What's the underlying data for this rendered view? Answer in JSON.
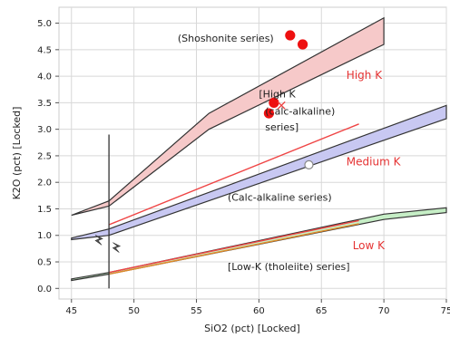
{
  "chart_data": {
    "type": "scatter",
    "xlabel": "SiO2 (pct) [Locked]",
    "ylabel": "K2O (pct) [Locked]",
    "xlim": [
      44,
      75
    ],
    "ylim": [
      -0.2,
      5.3
    ],
    "x_ticks": [
      "45",
      "50",
      "55",
      "60",
      "65",
      "70",
      "75"
    ],
    "y_ticks": [
      "0.0",
      "0.5",
      "1.0",
      "1.5",
      "2.0",
      "2.5",
      "3.0",
      "3.5",
      "4.0",
      "4.5",
      "5.0"
    ],
    "grid": true,
    "bands": [
      {
        "name": "shoshonite",
        "color": "#f6c9c9",
        "points": [
          [
            45,
            1.38
          ],
          [
            48,
            1.65
          ],
          [
            56,
            3.3
          ],
          [
            70,
            5.1
          ],
          [
            70,
            4.6
          ],
          [
            56,
            3.0
          ],
          [
            48,
            1.55
          ],
          [
            45,
            1.38
          ]
        ]
      },
      {
        "name": "calc-alkaline",
        "color": "#c8c8f2",
        "points": [
          [
            45,
            0.95
          ],
          [
            48,
            1.12
          ],
          [
            75,
            3.45
          ],
          [
            75,
            3.2
          ],
          [
            48,
            1.0
          ],
          [
            45,
            0.92
          ]
        ]
      },
      {
        "name": "low-k",
        "color": "#c6eec6",
        "points": [
          [
            45,
            0.18
          ],
          [
            48,
            0.3
          ],
          [
            70,
            1.4
          ],
          [
            75,
            1.52
          ],
          [
            75,
            1.43
          ],
          [
            70,
            1.3
          ],
          [
            48,
            0.27
          ],
          [
            45,
            0.15
          ]
        ]
      }
    ],
    "lines": [
      {
        "name": "red-upper",
        "color": "#ef4545",
        "points": [
          [
            48,
            1.2
          ],
          [
            68,
            3.1
          ]
        ]
      },
      {
        "name": "red-lower",
        "color": "#ef4545",
        "points": [
          [
            48,
            0.3
          ],
          [
            68,
            1.28
          ]
        ]
      },
      {
        "name": "orange-lower",
        "color": "#e08a2a",
        "points": [
          [
            48,
            0.27
          ],
          [
            68,
            1.22
          ]
        ]
      }
    ],
    "vertical_line": {
      "x": 48,
      "y_range": [
        0.0,
        2.9
      ]
    },
    "points": [
      {
        "x": 62.5,
        "y": 4.77,
        "color": "#ee1111",
        "filled": true
      },
      {
        "x": 63.5,
        "y": 4.6,
        "color": "#ee1111",
        "filled": true
      },
      {
        "x": 61.2,
        "y": 3.5,
        "color": "#ee1111",
        "filled": true
      },
      {
        "x": 60.8,
        "y": 3.3,
        "color": "#ee1111",
        "filled": true
      },
      {
        "x": 64,
        "y": 2.33,
        "color": "#888888",
        "filled": false
      }
    ],
    "cross_marker": {
      "x": 61.8,
      "y": 3.45,
      "color": "#ee4444"
    },
    "small_markers": [
      {
        "x": 47.2,
        "y": 0.92
      },
      {
        "x": 48.6,
        "y": 0.78
      }
    ],
    "annotations": [
      {
        "text": "(Shoshonite series)",
        "x": 53.5,
        "y": 4.65,
        "color": "#222222"
      },
      {
        "text": "High K",
        "x": 67,
        "y": 3.95,
        "color": "#e53333"
      },
      {
        "text": "[High K",
        "x": 60,
        "y": 3.6,
        "color": "#222222"
      },
      {
        "text": "(calc-alkaline)",
        "x": 60.5,
        "y": 3.28,
        "color": "#222222"
      },
      {
        "text": "series]",
        "x": 60.5,
        "y": 2.98,
        "color": "#222222"
      },
      {
        "text": "Medium K",
        "x": 67,
        "y": 2.32,
        "color": "#e53333"
      },
      {
        "text": "(Calc-alkaline series)",
        "x": 57.5,
        "y": 1.65,
        "color": "#222222"
      },
      {
        "text": "Low K",
        "x": 67.5,
        "y": 0.74,
        "color": "#e53333"
      },
      {
        "text": "[Low-K (tholeiite) series]",
        "x": 57.5,
        "y": 0.35,
        "color": "#222222"
      }
    ]
  }
}
